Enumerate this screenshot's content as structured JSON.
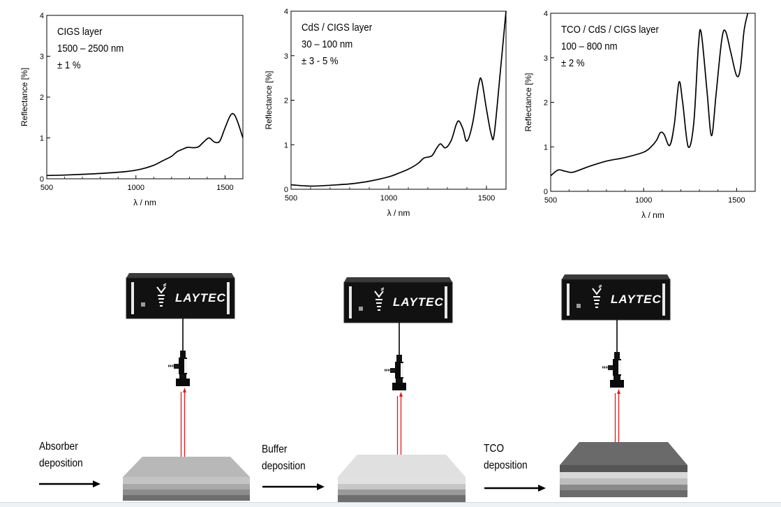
{
  "charts": [
    {
      "id": "cigs",
      "annotation": [
        "CIGS layer",
        "1500 – 2500 nm",
        "± 1 %"
      ],
      "ylabel": "Reflectance [%]",
      "xlabel": "λ / nm",
      "xlim": [
        500,
        1600
      ],
      "ylim": [
        0,
        4
      ],
      "xticks": [
        "500",
        "1000",
        "1500"
      ],
      "yticks": [
        "0",
        "1",
        "2",
        "3",
        "4"
      ],
      "curve": [
        [
          500,
          0.08
        ],
        [
          600,
          0.09
        ],
        [
          700,
          0.11
        ],
        [
          800,
          0.13
        ],
        [
          900,
          0.16
        ],
        [
          950,
          0.18
        ],
        [
          1000,
          0.21
        ],
        [
          1050,
          0.26
        ],
        [
          1100,
          0.33
        ],
        [
          1150,
          0.44
        ],
        [
          1200,
          0.55
        ],
        [
          1230,
          0.66
        ],
        [
          1260,
          0.72
        ],
        [
          1290,
          0.77
        ],
        [
          1320,
          0.76
        ],
        [
          1350,
          0.78
        ],
        [
          1380,
          0.9
        ],
        [
          1410,
          1.0
        ],
        [
          1440,
          0.9
        ],
        [
          1470,
          0.92
        ],
        [
          1500,
          1.25
        ],
        [
          1530,
          1.55
        ],
        [
          1550,
          1.58
        ],
        [
          1570,
          1.4
        ],
        [
          1600,
          1.0
        ]
      ]
    },
    {
      "id": "cds",
      "annotation": [
        "CdS / CIGS layer",
        "30 – 100 nm",
        "± 3 - 5 %"
      ],
      "ylabel": "Reflectance [%]",
      "xlabel": "λ / nm",
      "xlim": [
        500,
        1600
      ],
      "ylim": [
        0,
        4
      ],
      "xticks": [
        "500",
        "1000",
        "1500"
      ],
      "yticks": [
        "0",
        "1",
        "2",
        "3",
        "4"
      ],
      "curve": [
        [
          500,
          0.1
        ],
        [
          600,
          0.07
        ],
        [
          700,
          0.09
        ],
        [
          800,
          0.12
        ],
        [
          900,
          0.18
        ],
        [
          1000,
          0.28
        ],
        [
          1050,
          0.36
        ],
        [
          1100,
          0.45
        ],
        [
          1150,
          0.58
        ],
        [
          1180,
          0.7
        ],
        [
          1220,
          0.75
        ],
        [
          1245,
          0.92
        ],
        [
          1265,
          1.02
        ],
        [
          1290,
          0.93
        ],
        [
          1320,
          1.1
        ],
        [
          1345,
          1.45
        ],
        [
          1360,
          1.53
        ],
        [
          1380,
          1.35
        ],
        [
          1400,
          1.08
        ],
        [
          1430,
          1.5
        ],
        [
          1460,
          2.35
        ],
        [
          1475,
          2.45
        ],
        [
          1500,
          1.8
        ],
        [
          1525,
          1.22
        ],
        [
          1540,
          1.25
        ],
        [
          1570,
          2.6
        ],
        [
          1600,
          4.0
        ]
      ]
    },
    {
      "id": "tco",
      "annotation": [
        "TCO / CdS / CIGS layer",
        "100 – 800 nm",
        "± 2 %"
      ],
      "ylabel": "Reflectance [%]",
      "xlabel": "λ / nm",
      "xlim": [
        500,
        1600
      ],
      "ylim": [
        0,
        4
      ],
      "xticks": [
        "500",
        "1000",
        "1500"
      ],
      "yticks": [
        "0",
        "1",
        "2",
        "3",
        "4"
      ],
      "curve": [
        [
          500,
          0.35
        ],
        [
          540,
          0.48
        ],
        [
          580,
          0.45
        ],
        [
          620,
          0.43
        ],
        [
          700,
          0.55
        ],
        [
          800,
          0.68
        ],
        [
          900,
          0.76
        ],
        [
          1000,
          0.88
        ],
        [
          1040,
          1.0
        ],
        [
          1070,
          1.15
        ],
        [
          1090,
          1.32
        ],
        [
          1110,
          1.28
        ],
        [
          1140,
          1.03
        ],
        [
          1165,
          1.5
        ],
        [
          1190,
          2.45
        ],
        [
          1210,
          2.0
        ],
        [
          1240,
          1.0
        ],
        [
          1270,
          1.55
        ],
        [
          1295,
          3.3
        ],
        [
          1310,
          3.55
        ],
        [
          1340,
          2.3
        ],
        [
          1365,
          1.25
        ],
        [
          1390,
          2.2
        ],
        [
          1420,
          3.4
        ],
        [
          1440,
          3.6
        ],
        [
          1470,
          3.1
        ],
        [
          1500,
          2.6
        ],
        [
          1520,
          2.75
        ],
        [
          1540,
          3.6
        ],
        [
          1560,
          4.0
        ]
      ]
    }
  ],
  "device": {
    "brand": "LAYTEC"
  },
  "stages": [
    {
      "id": "absorber",
      "label": [
        "Absorber",
        "deposition"
      ],
      "layer_colors": [
        "#c4c4c4",
        "#a9a9a9",
        "#8c8c8c",
        "#6e6e6e"
      ],
      "top_color": "#b8b8b8"
    },
    {
      "id": "buffer",
      "label": [
        "Buffer",
        "deposition"
      ],
      "layer_colors": [
        "#e1e1e1",
        "#c7c7c7",
        "#9a9a9a",
        "#6e6e6e"
      ],
      "top_color": "#e0e0e0"
    },
    {
      "id": "tco",
      "label": [
        "TCO",
        "deposition"
      ],
      "layer_colors": [
        "#555555",
        "#d8d8d8",
        "#bdbdbd",
        "#8a8a8a",
        "#6b6b6b"
      ],
      "top_color": "#6a6a6a"
    }
  ],
  "colors": {
    "beam": "#e21a1a",
    "device": "#111111",
    "device_frame": "#2b2b2b"
  }
}
